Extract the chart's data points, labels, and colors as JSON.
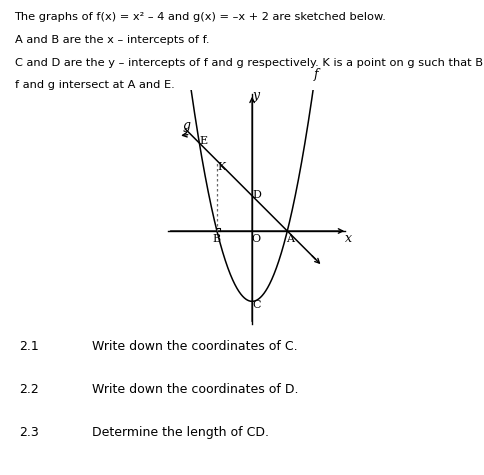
{
  "header_lines": [
    "The graphs of f(⁠x) = x² – 4 and g(x) = –x + 2 are sketched below.",
    "A and B are the x – intercepts of f.",
    "C and D are the y – intercepts of f and g respectively. K is a point on g such that BK ∥",
    "f and g intersect at A and E."
  ],
  "points": {
    "A": [
      2,
      0
    ],
    "B": [
      -2,
      0
    ],
    "C": [
      0,
      -4
    ],
    "D": [
      0,
      2
    ],
    "E": [
      -3,
      5
    ],
    "K": [
      -2,
      4
    ],
    "O": [
      0,
      0
    ]
  },
  "f_label": "f",
  "g_label": "g",
  "x_range": [
    -5.0,
    5.5
  ],
  "y_range": [
    -5.5,
    8.0
  ],
  "questions": [
    [
      "2.1",
      "Write down the coordinates of C."
    ],
    [
      "2.2",
      "Write down the coordinates of D."
    ],
    [
      "2.3",
      "Determine the length of CD."
    ]
  ],
  "background_color": "#ffffff",
  "curve_color": "#000000",
  "axis_color": "#000000",
  "dotted_color": "#666666"
}
